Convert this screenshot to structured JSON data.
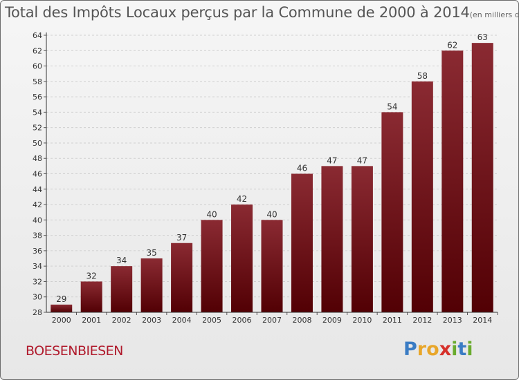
{
  "title": "Total des Impôts Locaux perçus par la Commune de 2000 à 2014",
  "subtitle": "(en milliers d'€)",
  "commune": "BOESENBIESEN",
  "logo": {
    "text": "Proxiti",
    "letters": [
      {
        "ch": "P",
        "color": "#3a7cc4"
      },
      {
        "ch": "r",
        "color": "#e8a62a"
      },
      {
        "ch": "o",
        "color": "#e8a62a"
      },
      {
        "ch": "x",
        "color": "#d6302a"
      },
      {
        "ch": "i",
        "color": "#6aab2e"
      },
      {
        "ch": "t",
        "color": "#3a7cc4"
      },
      {
        "ch": "i",
        "color": "#6aab2e"
      }
    ]
  },
  "colors": {
    "bar_top": "#8a2a32",
    "bar_bottom": "#520004",
    "grid": "#cfcfcf",
    "axis": "#333333"
  },
  "chart_data": {
    "type": "bar",
    "title": "Total des Impôts Locaux perçus par la Commune de 2000 à 2014",
    "xlabel": "",
    "ylabel": "",
    "categories": [
      "2000",
      "2001",
      "2002",
      "2003",
      "2004",
      "2005",
      "2006",
      "2007",
      "2008",
      "2009",
      "2010",
      "2011",
      "2012",
      "2013",
      "2014"
    ],
    "values": [
      29,
      32,
      34,
      35,
      37,
      40,
      42,
      40,
      46,
      47,
      47,
      54,
      58,
      62,
      63
    ],
    "ylim": [
      28,
      64
    ],
    "yticks": [
      28,
      30,
      32,
      34,
      36,
      38,
      40,
      42,
      44,
      46,
      48,
      50,
      52,
      54,
      56,
      58,
      60,
      62,
      64
    ],
    "grid": true,
    "data_labels": true
  }
}
